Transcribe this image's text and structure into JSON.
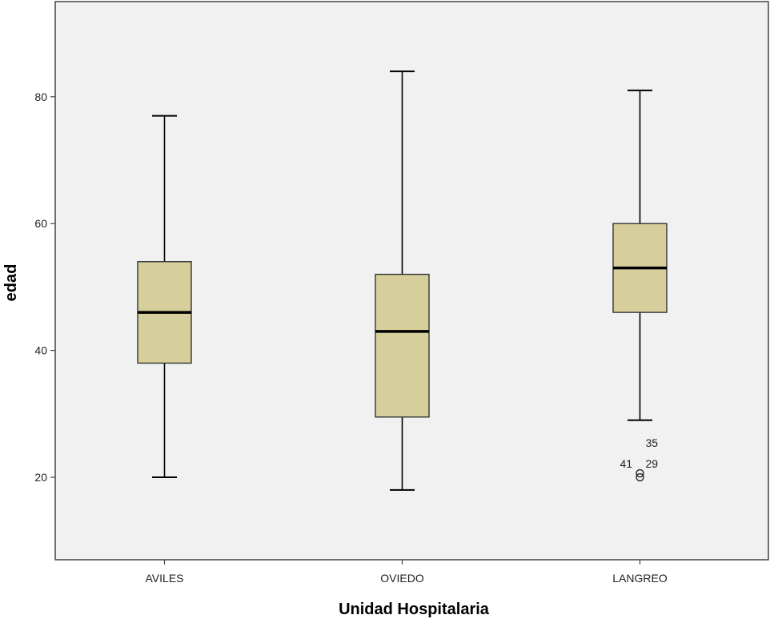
{
  "chart_data": {
    "type": "boxplot",
    "xlabel": "Unidad Hospitalaria",
    "ylabel": "edad",
    "ylim": [
      7,
      95
    ],
    "yticks": [
      20,
      40,
      60,
      80
    ],
    "grid": false,
    "legend": "none",
    "colors": {
      "box_fill": "#d6cf9c",
      "plot_bg": "#f0f1f0",
      "stroke": "#000000"
    },
    "categories": [
      "AVILES",
      "OVIEDO",
      "LANGREO"
    ],
    "boxes": [
      {
        "category": "AVILES",
        "min": 20,
        "q1": 38,
        "median": 46,
        "q3": 54,
        "max": 77,
        "outliers": []
      },
      {
        "category": "OVIEDO",
        "min": 18,
        "q1": 29.5,
        "median": 43,
        "q3": 52,
        "max": 84,
        "outliers": []
      },
      {
        "category": "LANGREO",
        "min": 29,
        "q1": 46,
        "median": 53,
        "q3": 60,
        "max": 81,
        "outliers": [
          {
            "value": 20,
            "labels": [
              "41",
              "29",
              "35"
            ]
          }
        ]
      }
    ]
  }
}
